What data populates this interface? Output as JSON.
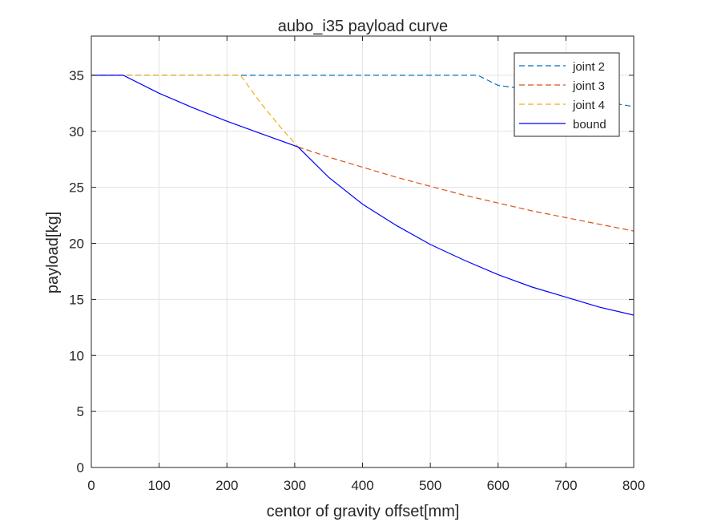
{
  "chart_data": {
    "type": "line",
    "title": "aubo_i35 payload curve",
    "xlabel": "centor of gravity offset[mm]",
    "ylabel": "payload[kg]",
    "xlim": [
      0,
      800
    ],
    "ylim": [
      0,
      38.5
    ],
    "xticks": [
      0,
      100,
      200,
      300,
      400,
      500,
      600,
      700,
      800
    ],
    "yticks": [
      0,
      5,
      10,
      15,
      20,
      25,
      30,
      35
    ],
    "grid": true,
    "legend_position": "top-right",
    "series": [
      {
        "name": "joint 2",
        "style": "dashed",
        "color": "#0072BD",
        "x": [
          0,
          570,
          600,
          650,
          700,
          750,
          800
        ],
        "y": [
          35,
          35,
          34.1,
          33.7,
          33.3,
          32.7,
          32.2
        ]
      },
      {
        "name": "joint 3",
        "style": "dashed",
        "color": "#D95319",
        "x": [
          305,
          350,
          400,
          450,
          500,
          550,
          600,
          650,
          700,
          750,
          800
        ],
        "y": [
          28.6,
          27.7,
          26.8,
          25.9,
          25.1,
          24.3,
          23.6,
          22.9,
          22.3,
          21.7,
          21.1
        ]
      },
      {
        "name": "joint 4",
        "style": "dashed",
        "color": "#EDB120",
        "x": [
          0,
          220,
          250,
          280,
          305
        ],
        "y": [
          35,
          35,
          32.5,
          30.3,
          28.6
        ]
      },
      {
        "name": "bound",
        "style": "solid",
        "color": "#0000FF",
        "x": [
          0,
          47,
          100,
          150,
          200,
          250,
          305,
          350,
          400,
          450,
          500,
          550,
          600,
          650,
          700,
          750,
          800
        ],
        "y": [
          35,
          35,
          33.4,
          32.1,
          30.9,
          29.8,
          28.6,
          25.9,
          23.5,
          21.6,
          19.9,
          18.5,
          17.2,
          16.1,
          15.2,
          14.3,
          13.6
        ]
      }
    ]
  }
}
